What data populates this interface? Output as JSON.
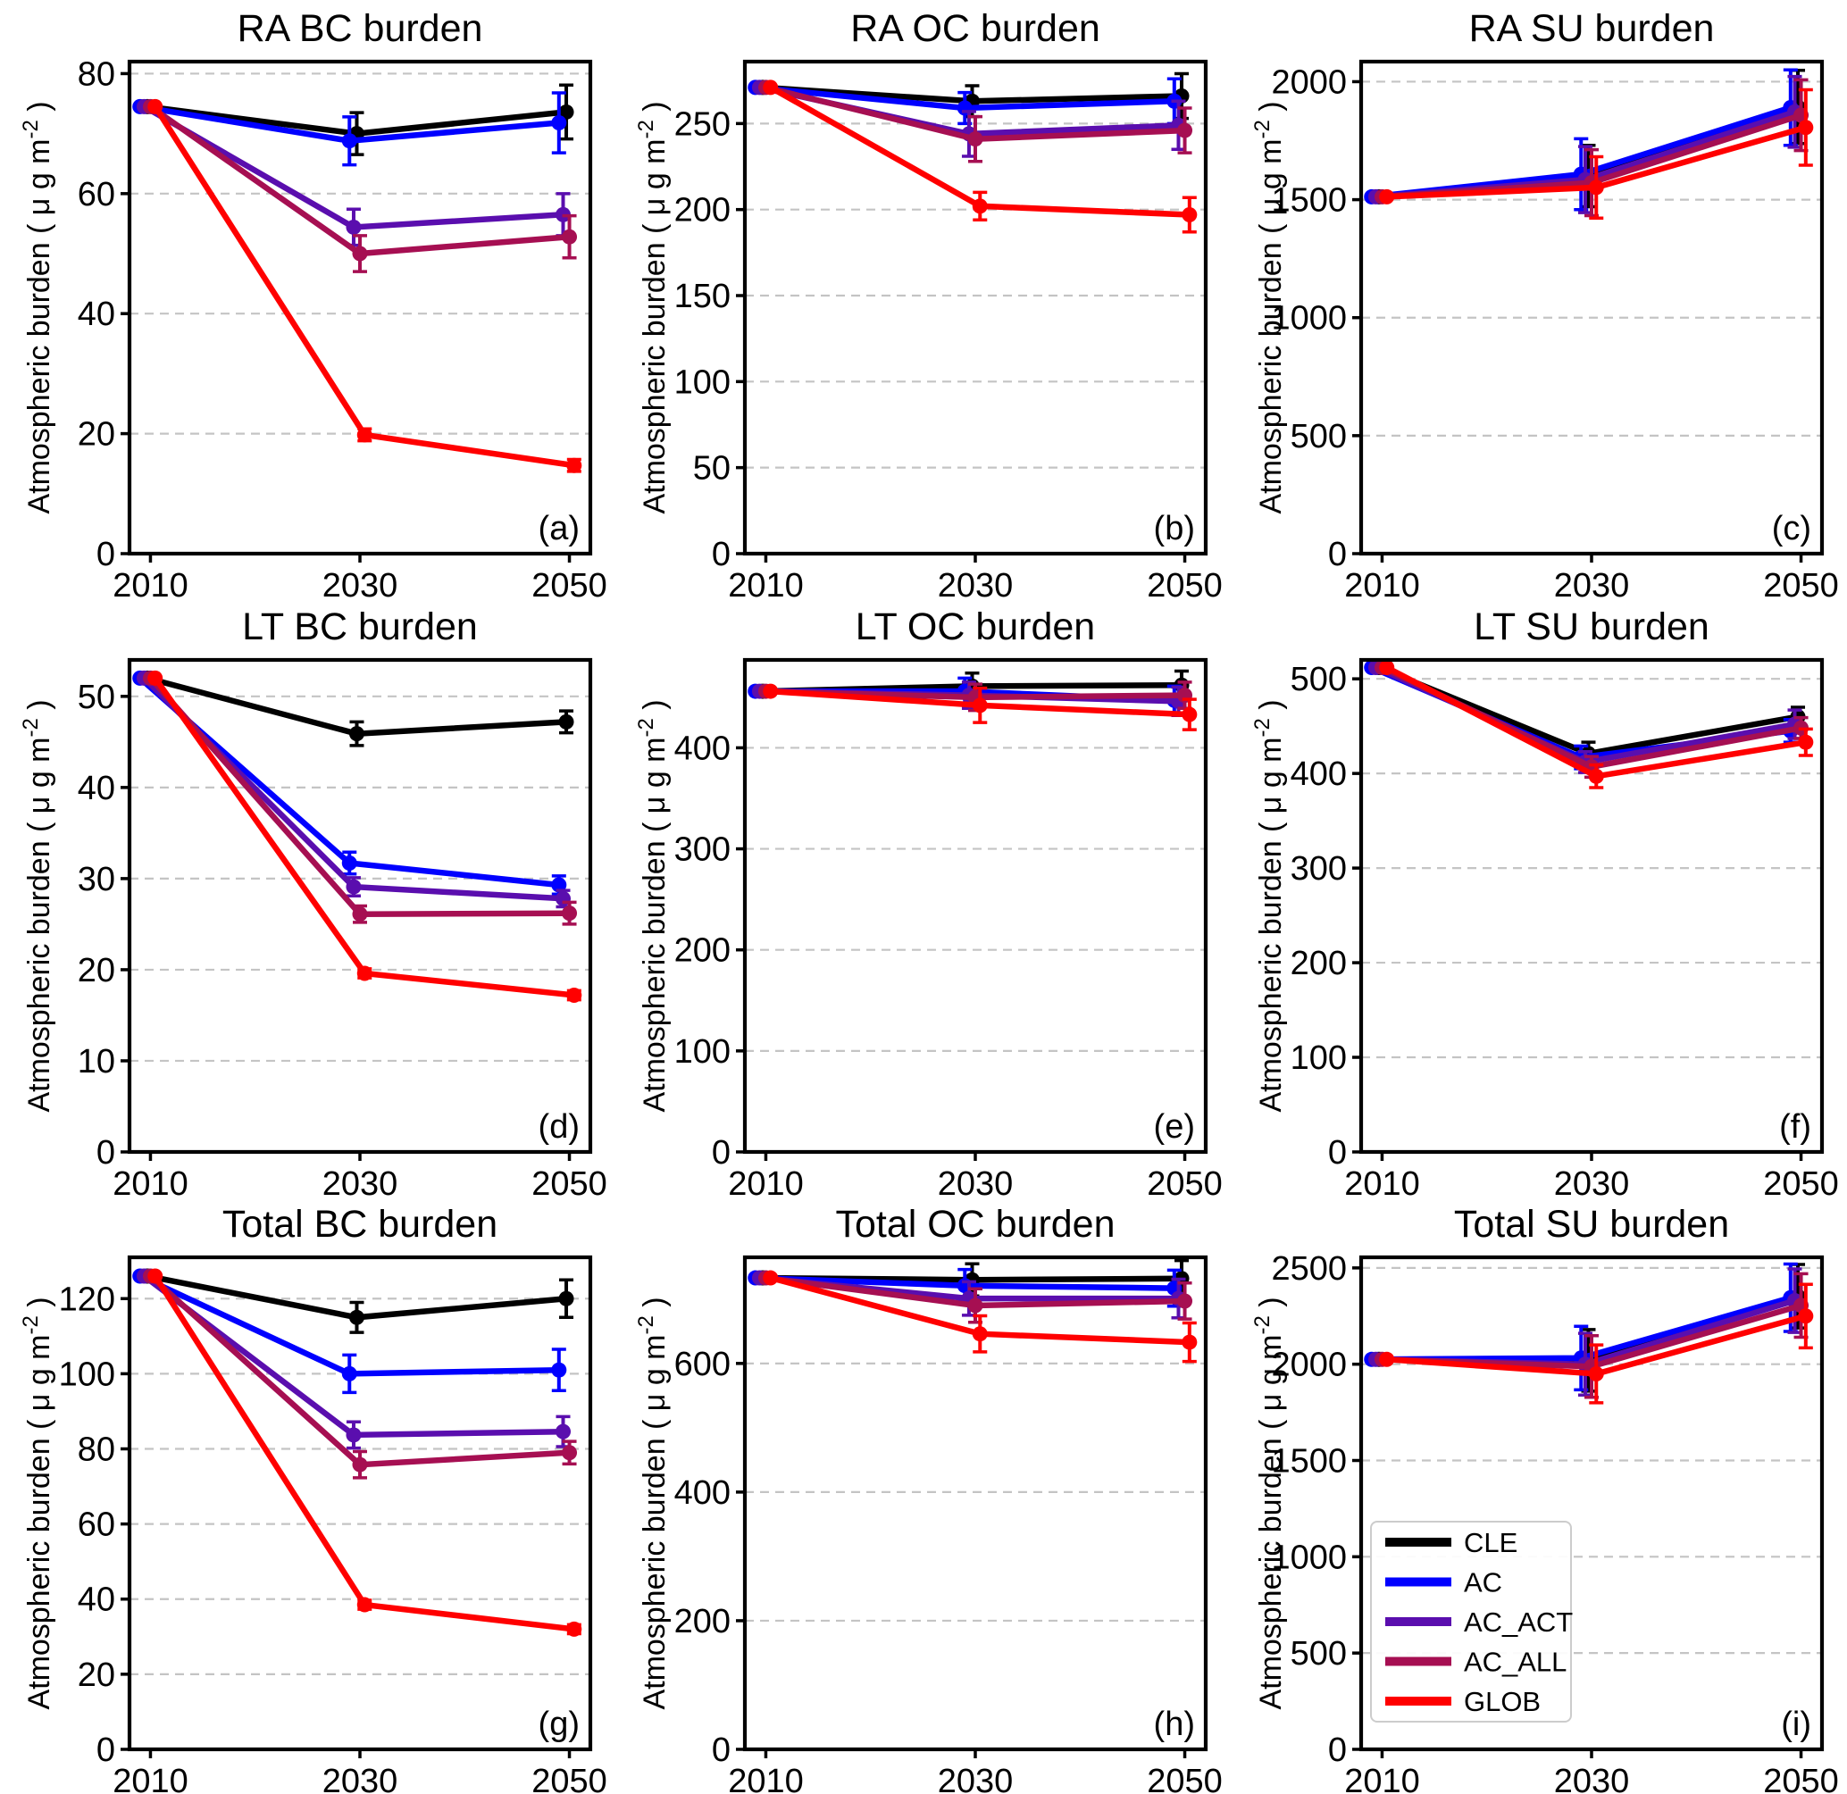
{
  "figure": {
    "ylabel": "Atmospheric burden ( μ g  m⁻² )",
    "ylabel_prefix": "Atmospheric burden ( μ g  m",
    "ylabel_sup": "-2",
    "ylabel_suffix": " )",
    "background": "#ffffff",
    "grid_color": "#c4c4c4",
    "axis_color": "#000000"
  },
  "legend": {
    "entries": [
      {
        "label": "CLE",
        "color": "#000000"
      },
      {
        "label": "AC",
        "color": "#0000ff"
      },
      {
        "label": "AC_ACT",
        "color": "#5a0eae"
      },
      {
        "label": "AC_ALL",
        "color": "#a60f52"
      },
      {
        "label": "GLOB",
        "color": "#ff0000"
      }
    ]
  },
  "series_meta": {
    "names": [
      "CLE",
      "AC",
      "AC_ACT",
      "AC_ALL",
      "GLOB"
    ],
    "colors": {
      "CLE": "#000000",
      "AC": "#0000ff",
      "AC_ACT": "#5a0eae",
      "AC_ALL": "#a60f52",
      "GLOB": "#ff0000"
    },
    "x_offsets": {
      "CLE": -0.3,
      "AC": -1.0,
      "AC_ACT": -0.6,
      "AC_ALL": 0.0,
      "GLOB": 0.45
    }
  },
  "chart_data": [
    {
      "id": "a",
      "type": "line",
      "title": "RA BC burden",
      "panel_label": "(a)",
      "x": [
        2010,
        2030,
        2050
      ],
      "xlim": [
        2008,
        2052
      ],
      "xticks": [
        2010,
        2030,
        2050
      ],
      "ylim": [
        0,
        82
      ],
      "yticks": [
        0,
        20,
        40,
        60,
        80
      ],
      "grid": "horizontal-dashed",
      "legend": false,
      "series": [
        {
          "name": "CLE",
          "values": [
            74.5,
            70.0,
            73.6
          ],
          "errors": [
            0,
            3.5,
            4.5
          ]
        },
        {
          "name": "AC",
          "values": [
            74.5,
            68.8,
            71.8
          ],
          "errors": [
            0,
            4,
            5
          ]
        },
        {
          "name": "AC_ACT",
          "values": [
            74.5,
            54.4,
            56.5
          ],
          "errors": [
            0,
            3,
            3.5
          ]
        },
        {
          "name": "AC_ALL",
          "values": [
            74.5,
            50.0,
            52.8
          ],
          "errors": [
            0,
            3,
            3.5
          ]
        },
        {
          "name": "GLOB",
          "values": [
            74.5,
            19.8,
            14.7
          ],
          "errors": [
            0,
            1,
            1
          ]
        }
      ]
    },
    {
      "id": "b",
      "type": "line",
      "title": "RA OC burden",
      "panel_label": "(b)",
      "x": [
        2010,
        2030,
        2050
      ],
      "xlim": [
        2008,
        2052
      ],
      "xticks": [
        2010,
        2030,
        2050
      ],
      "ylim": [
        0,
        286
      ],
      "yticks": [
        0,
        50,
        100,
        150,
        200,
        250
      ],
      "grid": "horizontal-dashed",
      "legend": false,
      "series": [
        {
          "name": "CLE",
          "values": [
            271,
            263,
            266
          ],
          "errors": [
            0,
            9,
            13
          ]
        },
        {
          "name": "AC",
          "values": [
            271,
            259,
            263
          ],
          "errors": [
            0,
            9,
            13
          ]
        },
        {
          "name": "AC_ACT",
          "values": [
            271,
            244,
            249
          ],
          "errors": [
            0,
            13,
            14
          ]
        },
        {
          "name": "AC_ALL",
          "values": [
            271,
            241,
            246
          ],
          "errors": [
            0,
            13,
            13
          ]
        },
        {
          "name": "GLOB",
          "values": [
            271,
            202,
            197
          ],
          "errors": [
            0,
            8,
            10
          ]
        }
      ]
    },
    {
      "id": "c",
      "type": "line",
      "title": "RA SU burden",
      "panel_label": "(c)",
      "x": [
        2010,
        2030,
        2050
      ],
      "xlim": [
        2008,
        2052
      ],
      "xticks": [
        2010,
        2030,
        2050
      ],
      "ylim": [
        0,
        2085
      ],
      "yticks": [
        0,
        500,
        1000,
        1500,
        2000
      ],
      "grid": "horizontal-dashed",
      "legend": false,
      "series": [
        {
          "name": "CLE",
          "values": [
            1512,
            1600,
            1893
          ],
          "errors": [
            0,
            130,
            155
          ]
        },
        {
          "name": "AC",
          "values": [
            1512,
            1608,
            1890
          ],
          "errors": [
            0,
            150,
            160
          ]
        },
        {
          "name": "AC_ACT",
          "values": [
            1512,
            1585,
            1872
          ],
          "errors": [
            0,
            140,
            150
          ]
        },
        {
          "name": "AC_ALL",
          "values": [
            1512,
            1572,
            1858
          ],
          "errors": [
            0,
            140,
            150
          ]
        },
        {
          "name": "GLOB",
          "values": [
            1512,
            1552,
            1806
          ],
          "errors": [
            0,
            130,
            160
          ]
        }
      ]
    },
    {
      "id": "d",
      "type": "line",
      "title": "LT BC burden",
      "panel_label": "(d)",
      "x": [
        2010,
        2030,
        2050
      ],
      "xlim": [
        2008,
        2052
      ],
      "xticks": [
        2010,
        2030,
        2050
      ],
      "ylim": [
        0,
        54
      ],
      "yticks": [
        0,
        10,
        20,
        30,
        40,
        50
      ],
      "grid": "horizontal-dashed",
      "legend": false,
      "series": [
        {
          "name": "CLE",
          "values": [
            52.0,
            45.9,
            47.2
          ],
          "errors": [
            0,
            1.3,
            1.2
          ]
        },
        {
          "name": "AC",
          "values": [
            52.0,
            31.7,
            29.3
          ],
          "errors": [
            0,
            1.2,
            1.0
          ]
        },
        {
          "name": "AC_ACT",
          "values": [
            52.0,
            29.1,
            27.8
          ],
          "errors": [
            0,
            1.0,
            0.9
          ]
        },
        {
          "name": "AC_ALL",
          "values": [
            52.0,
            26.1,
            26.2
          ],
          "errors": [
            0,
            0.9,
            1.2
          ]
        },
        {
          "name": "GLOB",
          "values": [
            52.0,
            19.6,
            17.2
          ],
          "errors": [
            0,
            0.5,
            0.5
          ]
        }
      ]
    },
    {
      "id": "e",
      "type": "line",
      "title": "LT OC burden",
      "panel_label": "(e)",
      "x": [
        2010,
        2030,
        2050
      ],
      "xlim": [
        2008,
        2052
      ],
      "xticks": [
        2010,
        2030,
        2050
      ],
      "ylim": [
        0,
        487
      ],
      "yticks": [
        0,
        100,
        200,
        300,
        400
      ],
      "grid": "horizontal-dashed",
      "legend": false,
      "series": [
        {
          "name": "CLE",
          "values": [
            456,
            461,
            462
          ],
          "errors": [
            0,
            13,
            14
          ]
        },
        {
          "name": "AC",
          "values": [
            456,
            456,
            447
          ],
          "errors": [
            0,
            13,
            14
          ]
        },
        {
          "name": "AC_ACT",
          "values": [
            456,
            452,
            446
          ],
          "errors": [
            0,
            13,
            14
          ]
        },
        {
          "name": "AC_ALL",
          "values": [
            456,
            450,
            452
          ],
          "errors": [
            0,
            13,
            13
          ]
        },
        {
          "name": "GLOB",
          "values": [
            456,
            442,
            433
          ],
          "errors": [
            0,
            17,
            15
          ]
        }
      ]
    },
    {
      "id": "f",
      "type": "line",
      "title": "LT SU burden",
      "panel_label": "(f)",
      "x": [
        2010,
        2030,
        2050
      ],
      "xlim": [
        2008,
        2052
      ],
      "xticks": [
        2010,
        2030,
        2050
      ],
      "ylim": [
        0,
        520
      ],
      "yticks": [
        0,
        100,
        200,
        300,
        400,
        500
      ],
      "grid": "horizontal-dashed",
      "legend": false,
      "series": [
        {
          "name": "CLE",
          "values": [
            512,
            421,
            460
          ],
          "errors": [
            0,
            12,
            10
          ]
        },
        {
          "name": "AC",
          "values": [
            512,
            417,
            445
          ],
          "errors": [
            0,
            12,
            12
          ]
        },
        {
          "name": "AC_ACT",
          "values": [
            512,
            412,
            452
          ],
          "errors": [
            0,
            11,
            15
          ]
        },
        {
          "name": "AC_ALL",
          "values": [
            512,
            407,
            448
          ],
          "errors": [
            0,
            11,
            11
          ]
        },
        {
          "name": "GLOB",
          "values": [
            512,
            397,
            433
          ],
          "errors": [
            0,
            12,
            14
          ]
        }
      ]
    },
    {
      "id": "g",
      "type": "line",
      "title": "Total BC burden",
      "panel_label": "(g)",
      "x": [
        2010,
        2030,
        2050
      ],
      "xlim": [
        2008,
        2052
      ],
      "xticks": [
        2010,
        2030,
        2050
      ],
      "ylim": [
        0,
        131
      ],
      "yticks": [
        0,
        20,
        40,
        60,
        80,
        100,
        120
      ],
      "grid": "horizontal-dashed",
      "legend": false,
      "series": [
        {
          "name": "CLE",
          "values": [
            126,
            115,
            120
          ],
          "errors": [
            0,
            4,
            5
          ]
        },
        {
          "name": "AC",
          "values": [
            126,
            100,
            101
          ],
          "errors": [
            0,
            5,
            5.5
          ]
        },
        {
          "name": "AC_ACT",
          "values": [
            126,
            83.7,
            84.6
          ],
          "errors": [
            0,
            3.5,
            4
          ]
        },
        {
          "name": "AC_ALL",
          "values": [
            126,
            75.8,
            79.0
          ],
          "errors": [
            0,
            3.5,
            3
          ]
        },
        {
          "name": "GLOB",
          "values": [
            126,
            38.5,
            32.0
          ],
          "errors": [
            0,
            1.2,
            1.2
          ]
        }
      ]
    },
    {
      "id": "h",
      "type": "line",
      "title": "Total OC burden",
      "panel_label": "(h)",
      "x": [
        2010,
        2030,
        2050
      ],
      "xlim": [
        2008,
        2052
      ],
      "xticks": [
        2010,
        2030,
        2050
      ],
      "ylim": [
        0,
        765
      ],
      "yticks": [
        0,
        200,
        400,
        600
      ],
      "grid": "horizontal-dashed",
      "legend": false,
      "series": [
        {
          "name": "CLE",
          "values": [
            733,
            730,
            732
          ],
          "errors": [
            0,
            25,
            28
          ]
        },
        {
          "name": "AC",
          "values": [
            733,
            721,
            717
          ],
          "errors": [
            0,
            25,
            28
          ]
        },
        {
          "name": "AC_ACT",
          "values": [
            733,
            701,
            701
          ],
          "errors": [
            0,
            26,
            30
          ]
        },
        {
          "name": "AC_ALL",
          "values": [
            733,
            690,
            697
          ],
          "errors": [
            0,
            26,
            28
          ]
        },
        {
          "name": "GLOB",
          "values": [
            733,
            646,
            633
          ],
          "errors": [
            0,
            28,
            30
          ]
        }
      ]
    },
    {
      "id": "i",
      "type": "line",
      "title": "Total SU burden",
      "panel_label": "(i)",
      "x": [
        2010,
        2030,
        2050
      ],
      "xlim": [
        2008,
        2052
      ],
      "xticks": [
        2010,
        2030,
        2050
      ],
      "ylim": [
        0,
        2555
      ],
      "yticks": [
        0,
        500,
        1000,
        1500,
        2000,
        2500
      ],
      "grid": "horizontal-dashed",
      "legend": true,
      "series": [
        {
          "name": "CLE",
          "values": [
            2025,
            2020,
            2353
          ],
          "errors": [
            0,
            160,
            165
          ]
        },
        {
          "name": "AC",
          "values": [
            2025,
            2032,
            2345
          ],
          "errors": [
            0,
            165,
            175
          ]
        },
        {
          "name": "AC_ACT",
          "values": [
            2025,
            2000,
            2330
          ],
          "errors": [
            0,
            160,
            165
          ]
        },
        {
          "name": "AC_ALL",
          "values": [
            2025,
            1988,
            2305
          ],
          "errors": [
            0,
            160,
            165
          ]
        },
        {
          "name": "GLOB",
          "values": [
            2025,
            1950,
            2250
          ],
          "errors": [
            0,
            150,
            165
          ]
        }
      ]
    }
  ]
}
